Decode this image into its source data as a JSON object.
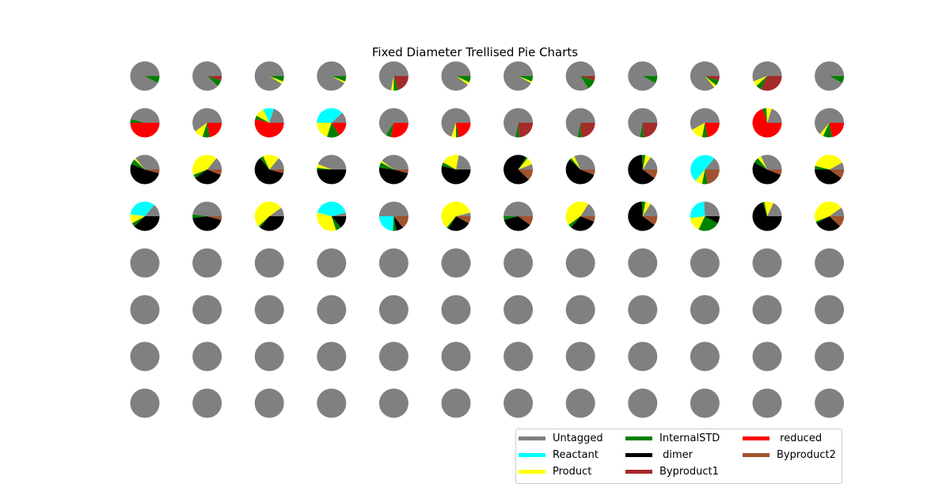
{
  "chart_data": {
    "type": "pie",
    "title": "Fixed Diameter Trellised Pie Charts",
    "grid": {
      "rows": 8,
      "cols": 12
    },
    "categories": [
      "Untagged",
      "Reactant",
      "Product",
      "InternalSTD",
      " dimer",
      "Byproduct1",
      " reduced",
      "Byproduct2"
    ],
    "colors": {
      "Untagged": "#808080",
      "Reactant": "#00ffff",
      "Product": "#ffff00",
      "InternalSTD": "#008000",
      " dimer": "#000000",
      "Byproduct1": "#a52a2a",
      " reduced": "#ff0000",
      "Byproduct2": "#a0522d"
    },
    "legend": {
      "placement": "bottom-right",
      "entries": [
        "Untagged",
        "Reactant",
        "Product",
        "InternalSTD",
        " dimer",
        "Byproduct1",
        " reduced",
        "Byproduct2"
      ]
    },
    "pies": [
      [
        {
          "Untagged": 92,
          "InternalSTD": 8
        },
        {
          "Untagged": 88,
          "InternalSTD": 7,
          "Byproduct1": 5
        },
        {
          "Untagged": 91,
          "Product": 3,
          "InternalSTD": 6
        },
        {
          "Untagged": 92,
          "Product": 2,
          "InternalSTD": 6
        },
        {
          "Untagged": 72,
          "Product": 3,
          "InternalSTD": 5,
          "Byproduct1": 20
        },
        {
          "Untagged": 90,
          "Product": 3,
          "InternalSTD": 7
        },
        {
          "Untagged": 92,
          "Product": 2,
          "InternalSTD": 6
        },
        {
          "Untagged": 84,
          "InternalSTD": 11,
          "Byproduct1": 5
        },
        {
          "Untagged": 92,
          "InternalSTD": 8
        },
        {
          "Untagged": 86,
          "Product": 3,
          "InternalSTD": 6,
          "Byproduct1": 5
        },
        {
          "Untagged": 56,
          "Product": 6,
          "InternalSTD": 6,
          "Byproduct1": 32
        },
        {
          "Untagged": 92,
          "InternalSTD": 8
        }
      ],
      [
        {
          "Untagged": 46,
          "InternalSTD": 4,
          " reduced": 50
        },
        {
          "Untagged": 60,
          "Product": 10,
          "InternalSTD": 8,
          " reduced": 22
        },
        {
          "Untagged": 20,
          "Reactant": 12,
          "Product": 10,
          "InternalSTD": 4,
          " reduced": 54
        },
        {
          "Untagged": 12,
          "Reactant": 38,
          "Product": 20,
          "InternalSTD": 14,
          " reduced": 16
        },
        {
          "Untagged": 66,
          "InternalSTD": 6,
          " reduced": 28
        },
        {
          "Untagged": 70,
          "Product": 5,
          "InternalSTD": 3,
          " reduced": 22
        },
        {
          "Untagged": 72,
          "InternalSTD": 4,
          "Byproduct1": 24
        },
        {
          "Untagged": 72,
          "InternalSTD": 4,
          "Byproduct1": 24
        },
        {
          "Untagged": 72,
          "InternalSTD": 4,
          "Byproduct1": 24
        },
        {
          "Untagged": 58,
          "Product": 14,
          "InternalSTD": 6,
          " reduced": 22
        },
        {
          "Untagged": 20,
          "Product": 6,
          "InternalSTD": 4,
          " reduced": 70
        },
        {
          "Untagged": 64,
          "Product": 4,
          "InternalSTD": 10,
          " reduced": 22
        }
      ],
      [
        {
          "Untagged": 36,
          "Product": 2,
          "InternalSTD": 6,
          " dimer": 52,
          "Byproduct2": 4
        },
        {
          "Untagged": 14,
          "Product": 42,
          "InternalSTD": 4,
          " dimer": 34,
          "Byproduct2": 6
        },
        {
          "Untagged": 14,
          "Product": 18,
          "InternalSTD": 4,
          " dimer": 60,
          "Byproduct2": 4
        },
        {
          "Untagged": 44,
          "Product": 4,
          "InternalSTD": 2,
          " dimer": 50
        },
        {
          "Untagged": 40,
          "Product": 2,
          "InternalSTD": 6,
          " dimer": 48,
          "Byproduct2": 4
        },
        {
          "Untagged": 22,
          "Product": 20,
          "InternalSTD": 4,
          " dimer": 54
        },
        {
          "Untagged": 6,
          "Product": 8,
          "InternalSTD": 2,
          " dimer": 72,
          "Byproduct2": 12
        },
        {
          "Untagged": 32,
          "Product": 4,
          "InternalSTD": 2,
          " dimer": 56,
          "Byproduct2": 6
        },
        {
          "Untagged": 16,
          "Product": 6,
          "InternalSTD": 4,
          " dimer": 64,
          "Byproduct2": 10
        },
        {
          "Untagged": 14,
          "Reactant": 50,
          "Product": 8,
          "InternalSTD": 6,
          "Byproduct2": 22
        },
        {
          "Untagged": 32,
          "Product": 4,
          "InternalSTD": 6,
          " dimer": 52,
          "Byproduct2": 6
        },
        {
          "Untagged": 8,
          "Product": 38,
          "InternalSTD": 4,
          " dimer": 40,
          "Byproduct2": 10
        }
      ],
      [
        {
          "Untagged": 14,
          "Reactant": 34,
          "Product": 10,
          "InternalSTD": 4,
          " dimer": 38
        },
        {
          "Untagged": 48,
          "InternalSTD": 4,
          " dimer": 44,
          "Byproduct2": 4
        },
        {
          "Untagged": 10,
          "Product": 52,
          "InternalSTD": 2,
          " dimer": 36
        },
        {
          "Untagged": 4,
          "Reactant": 42,
          "Product": 34,
          "InternalSTD": 6,
          " dimer": 14
        },
        {
          "Untagged": 50,
          "Reactant": 24,
          "InternalSTD": 4,
          " dimer": 8,
          "Byproduct2": 14
        },
        {
          "Untagged": 4,
          "Product": 60,
          "InternalSTD": 2,
          " dimer": 26,
          "Byproduct2": 8
        },
        {
          "Untagged": 50,
          "InternalSTD": 4,
          " dimer": 36,
          "Byproduct2": 10
        },
        {
          "Untagged": 16,
          "Product": 44,
          "InternalSTD": 4,
          " dimer": 30,
          "Byproduct2": 6
        },
        {
          "Untagged": 16,
          "Product": 6,
          "InternalSTD": 4,
          " dimer": 64,
          "Byproduct2": 10
        },
        {
          "Untagged": 26,
          "Reactant": 26,
          "Product": 16,
          "InternalSTD": 24,
          " dimer": 8
        },
        {
          "Untagged": 18,
          "Product": 10,
          "InternalSTD": 2,
          " dimer": 70
        },
        {
          "Untagged": 10,
          "Product": 46,
          "InternalSTD": 2,
          " dimer": 30,
          "Byproduct2": 12
        }
      ]
    ],
    "empty_rows_all_untagged": [
      4,
      5,
      6,
      7
    ]
  }
}
